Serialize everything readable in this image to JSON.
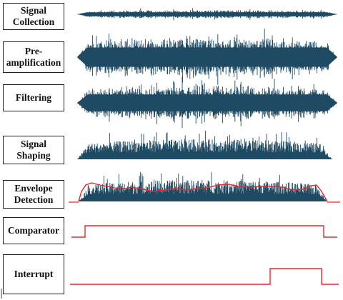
{
  "stages": [
    {
      "id": "signal-collection",
      "label": "Signal\nCollection"
    },
    {
      "id": "pre-amplification",
      "label": "Pre-\namplification"
    },
    {
      "id": "filtering",
      "label": "Filtering"
    },
    {
      "id": "signal-shaping",
      "label": "Signal\nShaping"
    },
    {
      "id": "envelope-detection",
      "label": "Envelope\nDetection"
    },
    {
      "id": "comparator",
      "label": "Comparator"
    },
    {
      "id": "interrupt",
      "label": "Interrupt"
    }
  ],
  "colors": {
    "waveform": "#1f4a63",
    "envelope": "#e8272b",
    "digital": "#e8272b"
  }
}
